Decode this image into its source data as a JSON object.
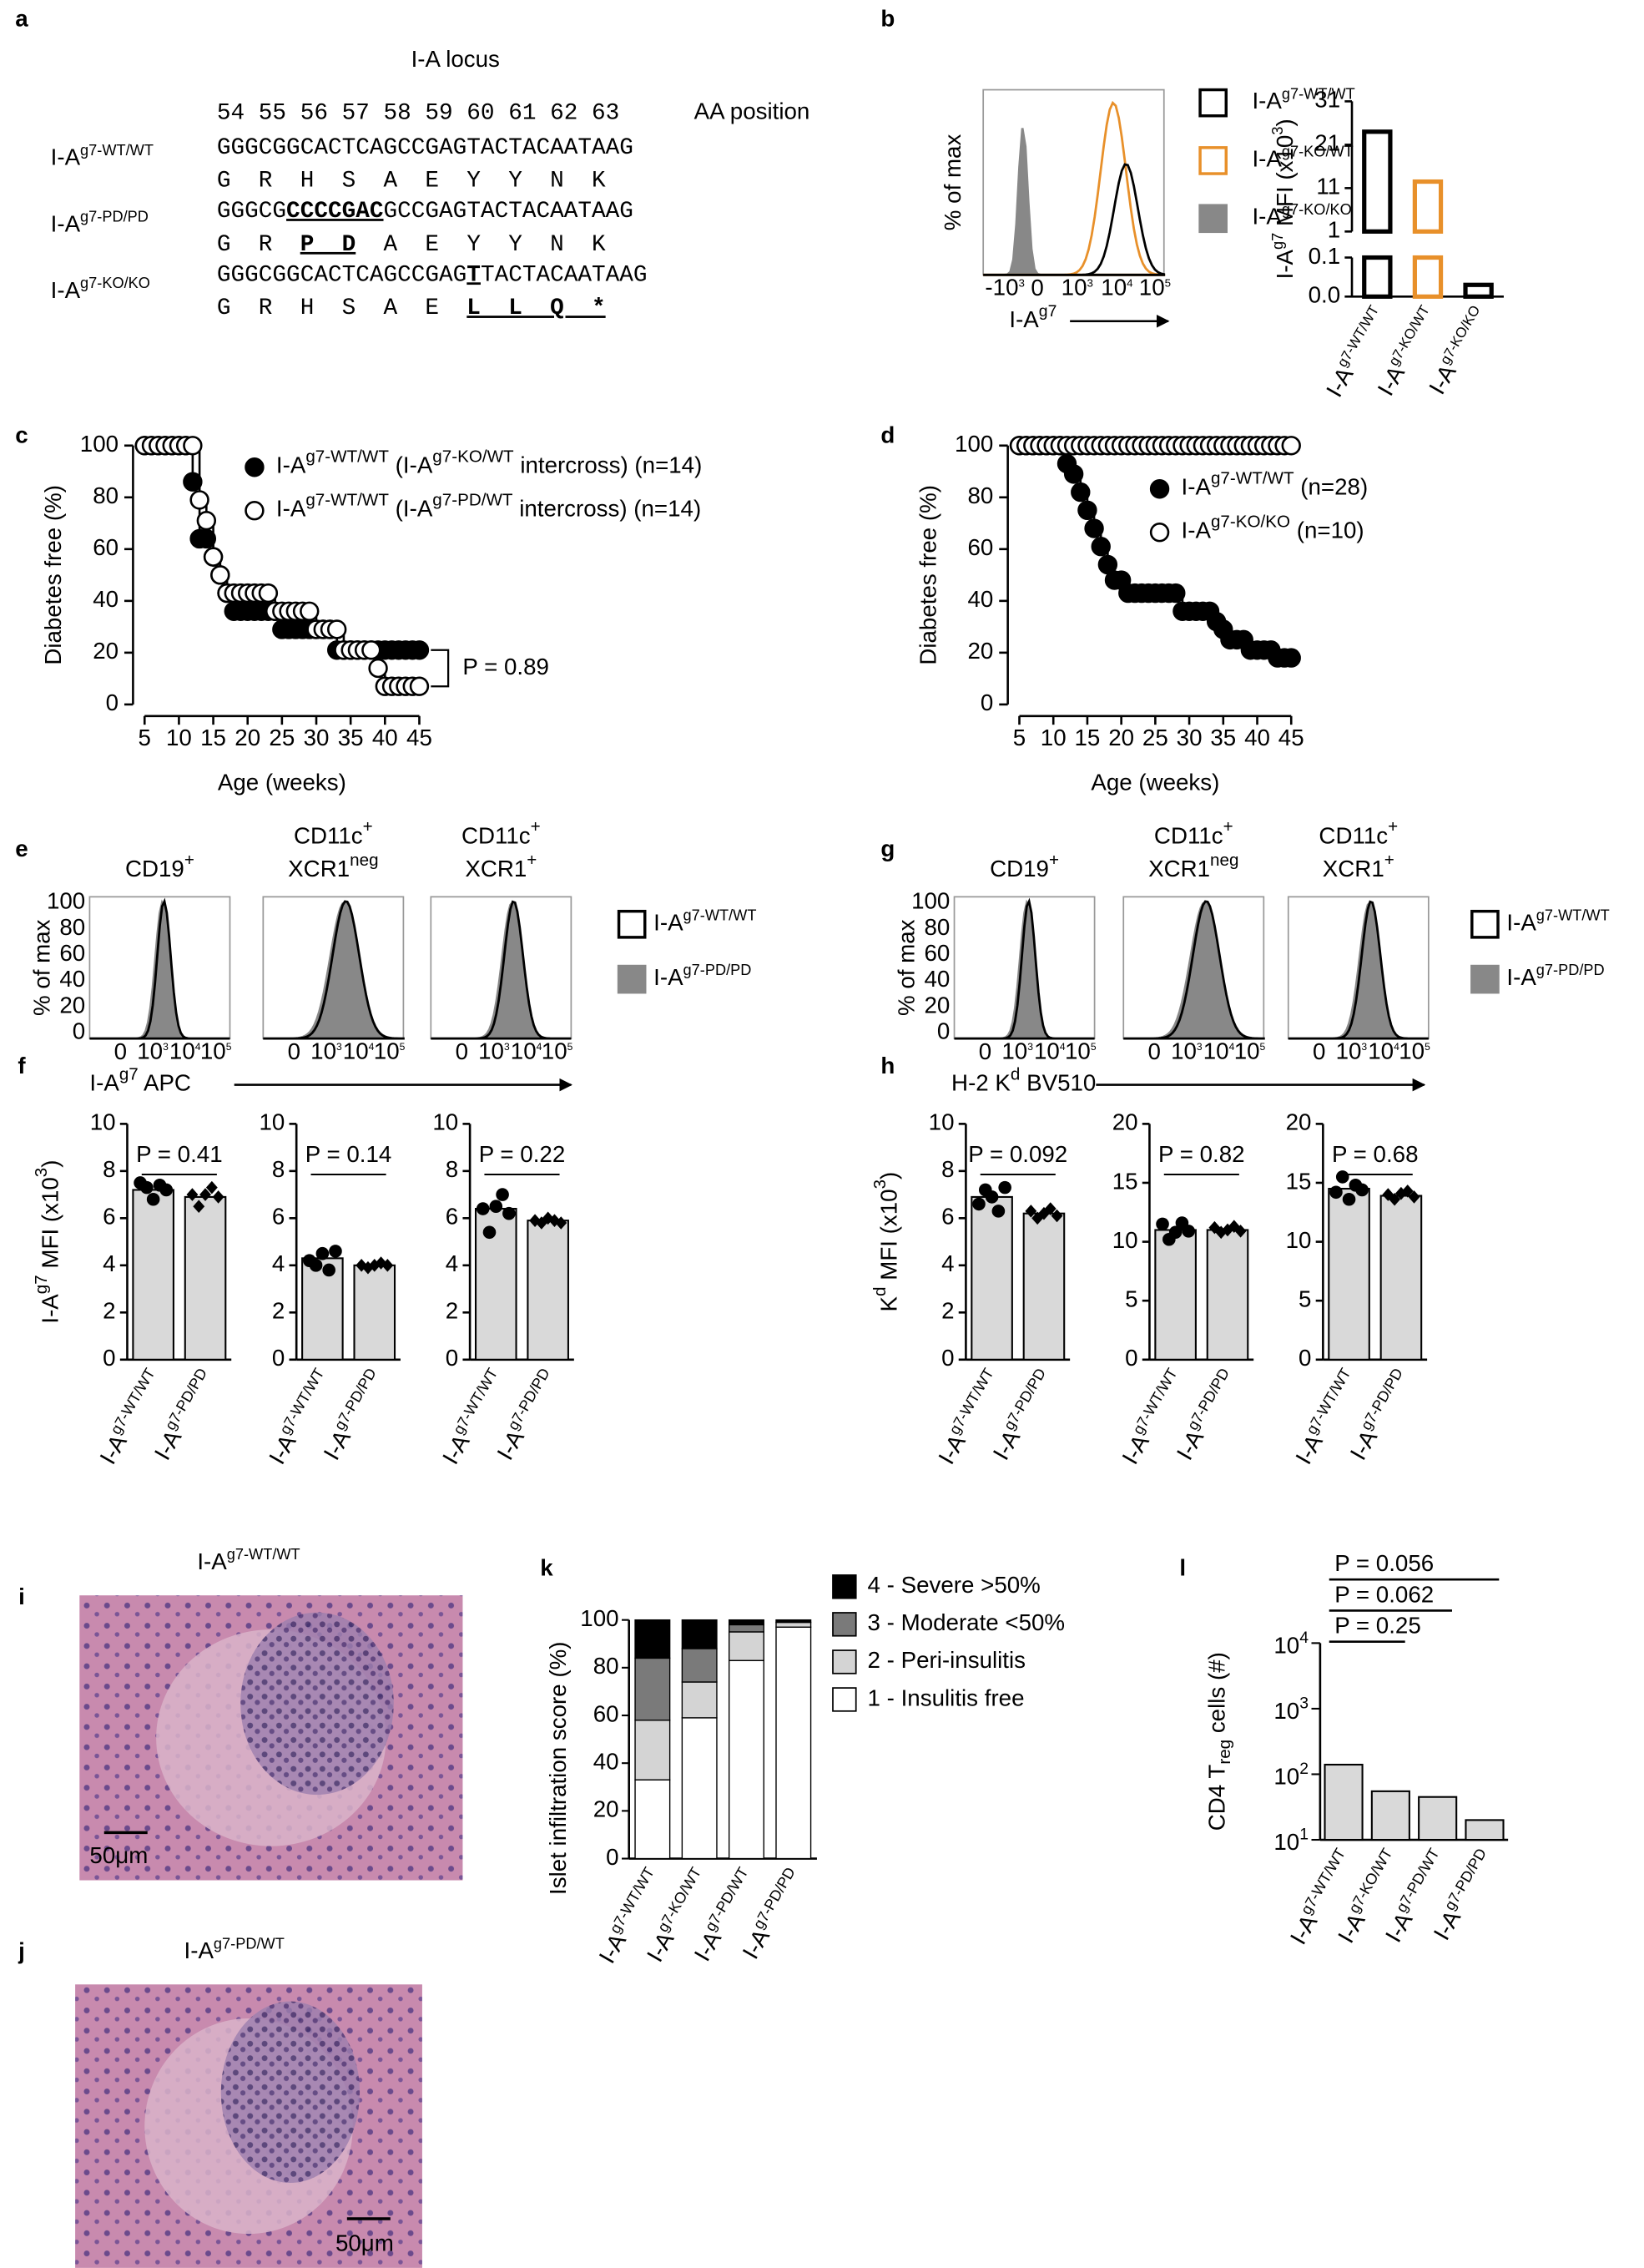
{
  "panel_labels": [
    "a",
    "b",
    "c",
    "d",
    "e",
    "f",
    "g",
    "h",
    "i",
    "j",
    "k",
    "l"
  ],
  "panel_a": {
    "title": "I-A locus",
    "positions": "54 55 56 57 58 59 60 61 62 63",
    "positions_label": "AA position",
    "rows": [
      {
        "name": [
          "I-A",
          {
            "sup": "g7-WT/WT"
          }
        ],
        "dna": [
          "GGGCGGCACTCAGCCGAGTACTACAATAAG"
        ],
        "protein": [
          "G  R  H  S  A  E  Y  Y  N  K"
        ]
      },
      {
        "name": [
          "I-A",
          {
            "sup": "g7-PD/PD"
          }
        ],
        "dna": [
          "GGGCG",
          {
            "bold": "CCCCGAC"
          },
          "GCCGAGTACTACAATAAG"
        ],
        "protein": [
          "G  R  ",
          {
            "bold": "P  D"
          },
          "  A  E  Y  Y  N  K"
        ]
      },
      {
        "name": [
          "I-A",
          {
            "sup": "g7-KO/KO"
          }
        ],
        "dna": [
          "GGGCGGCACTCAGCCGAG",
          {
            "bold": "T"
          },
          "TACTACAATAAG"
        ],
        "protein": [
          "G  R  H  S  A  E  ",
          {
            "bold": "L  L  Q  *"
          }
        ]
      }
    ]
  },
  "panel_b": {
    "flow": {
      "ylabel": "% of max",
      "xlabel": [
        "I-A",
        {
          "sup": "g7"
        }
      ],
      "xticks": [
        [
          "-10",
          {
            "sup": "3"
          }
        ],
        "0",
        [
          "10",
          {
            "sup": "3"
          }
        ],
        [
          "10",
          {
            "sup": "4"
          }
        ],
        [
          "10",
          {
            "sup": "5"
          }
        ]
      ]
    },
    "legend": [
      {
        "text": [
          "I-A",
          {
            "sup": "g7-WT/WT"
          }
        ],
        "fill": "#ffffff",
        "edge": "#000000"
      },
      {
        "text": [
          "I-A",
          {
            "sup": "g7-KO/WT"
          }
        ],
        "fill": "#ffffff",
        "edge": "#e8902a"
      },
      {
        "text": [
          "I-A",
          {
            "sup": "g7-KO/KO"
          }
        ],
        "fill": "#888888",
        "edge": "#888888"
      }
    ]
  },
  "panel_e": {
    "titles": [
      [
        [
          "CD19",
          {
            "sup": "+"
          }
        ]
      ],
      [
        [
          "CD11c",
          {
            "sup": "+"
          }
        ],
        [
          "XCR1",
          {
            "sup": "neg"
          }
        ]
      ],
      [
        [
          "CD11c",
          {
            "sup": "+"
          }
        ],
        [
          "XCR1",
          {
            "sup": "+"
          }
        ]
      ]
    ],
    "ylabel": "% of max",
    "yticks": [
      "100",
      "80",
      "60",
      "40",
      "20",
      "0"
    ],
    "xticks": [
      "0",
      [
        "10",
        {
          "sup": "3"
        }
      ],
      [
        "10",
        {
          "sup": "4"
        }
      ],
      [
        "10",
        {
          "sup": "5"
        }
      ]
    ],
    "xlabel": [
      "I-A",
      {
        "sup": "g7"
      },
      " APC"
    ],
    "legend": [
      {
        "text": [
          "I-A",
          {
            "sup": "g7-WT/WT"
          }
        ],
        "fill": "#ffffff"
      },
      {
        "text": [
          "I-A",
          {
            "sup": "g7-PD/PD"
          }
        ],
        "fill": "#888888"
      }
    ]
  },
  "panel_g": {
    "titles": [
      [
        [
          "CD19",
          {
            "sup": "+"
          }
        ]
      ],
      [
        [
          "CD11c",
          {
            "sup": "+"
          }
        ],
        [
          "XCR1",
          {
            "sup": "neg"
          }
        ]
      ],
      [
        [
          "CD11c",
          {
            "sup": "+"
          }
        ],
        [
          "XCR1",
          {
            "sup": "+"
          }
        ]
      ]
    ],
    "ylabel": "% of max",
    "yticks": [
      "100",
      "80",
      "60",
      "40",
      "20",
      "0"
    ],
    "xticks": [
      "0",
      [
        "10",
        {
          "sup": "3"
        }
      ],
      [
        "10",
        {
          "sup": "4"
        }
      ],
      [
        "10",
        {
          "sup": "5"
        }
      ]
    ],
    "xlabel": [
      "H-2 K",
      {
        "sup": "d"
      },
      " BV510"
    ],
    "legend": [
      {
        "text": [
          "I-A",
          {
            "sup": "g7-WT/WT"
          }
        ],
        "fill": "#ffffff"
      },
      {
        "text": [
          "I-A",
          {
            "sup": "g7-PD/PD"
          }
        ],
        "fill": "#888888"
      }
    ]
  },
  "panel_i": {
    "title": [
      "I-A",
      {
        "sup": "g7-WT/WT"
      }
    ],
    "scale": "50μm"
  },
  "panel_j": {
    "title": [
      "I-A",
      {
        "sup": "g7-PD/WT"
      }
    ],
    "scale": "50μm"
  },
  "chart_data": [
    {
      "type": "broken_bar",
      "ylabel": [
        "I-A",
        {
          "sup": "g7"
        },
        " MFI (x10",
        {
          "sup": "3"
        },
        ")"
      ],
      "categories": [
        [
          "I-A",
          {
            "sup": "g7-WT/WT"
          }
        ],
        [
          "I-A",
          {
            "sup": "g7-KO/WT"
          }
        ],
        [
          "I-A",
          {
            "sup": "g7-KO/KO"
          }
        ]
      ],
      "values": [
        24,
        12.5,
        0.03
      ],
      "colors": [
        "#000000",
        "#e8902a",
        "#000000"
      ],
      "ylim": [
        0,
        31
      ],
      "axis_break": [
        0.1,
        1
      ],
      "yticks": [
        31,
        21,
        11,
        1,
        0.1,
        {
          "value": 0,
          "label": "0.0"
        }
      ]
    },
    {
      "type": "survival",
      "xlabel": "Age (weeks)",
      "ylabel": "Diabetes free (%)",
      "x": [
        5,
        6,
        7,
        8,
        9,
        10,
        11,
        12,
        13,
        14,
        15,
        16,
        17,
        18,
        19,
        20,
        21,
        22,
        23,
        24,
        25,
        26,
        27,
        28,
        29,
        30,
        31,
        32,
        33,
        34,
        35,
        36,
        37,
        38,
        39,
        40,
        41,
        42,
        43,
        44,
        45
      ],
      "series": [
        {
          "name": [
            "I-A",
            {
              "sup": "g7-WT/WT"
            },
            " (I-A",
            {
              "sup": "g7-KO/WT"
            },
            " intercross) (n=14)"
          ],
          "color": "#000000",
          "fill": "#000000",
          "values": [
            100,
            100,
            100,
            100,
            100,
            100,
            100,
            86,
            64,
            64,
            57,
            50,
            43,
            36,
            36,
            36,
            36,
            36,
            36,
            36,
            29,
            29,
            29,
            29,
            29,
            29,
            29,
            29,
            21,
            21,
            21,
            21,
            21,
            21,
            21,
            21,
            21,
            21,
            21,
            21,
            21
          ]
        },
        {
          "name": [
            "I-A",
            {
              "sup": "g7-WT/WT"
            },
            " (I-A",
            {
              "sup": "g7-PD/WT"
            },
            " intercross) (n=14)"
          ],
          "color": "#000000",
          "fill": "#ffffff",
          "values": [
            100,
            100,
            100,
            100,
            100,
            100,
            100,
            100,
            79,
            71,
            57,
            50,
            43,
            43,
            43,
            43,
            43,
            43,
            43,
            36,
            36,
            36,
            36,
            36,
            36,
            29,
            29,
            29,
            29,
            21,
            21,
            21,
            21,
            21,
            14,
            7,
            7,
            7,
            7,
            7,
            7
          ]
        }
      ],
      "xlim": [
        5,
        45
      ],
      "xticks": [
        5,
        10,
        15,
        20,
        25,
        30,
        35,
        40,
        45
      ],
      "ylim": [
        0,
        100
      ],
      "yticks": [
        0,
        20,
        40,
        60,
        80,
        100
      ],
      "annotation": "P = 0.89"
    },
    {
      "type": "survival",
      "xlabel": "Age (weeks)",
      "ylabel": "Diabetes free (%)",
      "x": [
        5,
        6,
        7,
        8,
        9,
        10,
        11,
        12,
        13,
        14,
        15,
        16,
        17,
        18,
        19,
        20,
        21,
        22,
        23,
        24,
        25,
        26,
        27,
        28,
        29,
        30,
        31,
        32,
        33,
        34,
        35,
        36,
        37,
        38,
        39,
        40,
        41,
        42,
        43,
        44,
        45
      ],
      "series": [
        {
          "name": [
            "I-A",
            {
              "sup": "g7-WT/WT"
            },
            " (n=28)"
          ],
          "color": "#000000",
          "fill": "#000000",
          "values": [
            100,
            100,
            100,
            100,
            100,
            100,
            100,
            93,
            89,
            82,
            75,
            68,
            61,
            54,
            48,
            48,
            43,
            43,
            43,
            43,
            43,
            43,
            43,
            43,
            36,
            36,
            36,
            36,
            36,
            32,
            29,
            25,
            25,
            25,
            21,
            21,
            21,
            21,
            18,
            18,
            18
          ]
        },
        {
          "name": [
            "I-A",
            {
              "sup": "g7-KO/KO"
            },
            " (n=10)"
          ],
          "color": "#000000",
          "fill": "#ffffff",
          "values": [
            100,
            100,
            100,
            100,
            100,
            100,
            100,
            100,
            100,
            100,
            100,
            100,
            100,
            100,
            100,
            100,
            100,
            100,
            100,
            100,
            100,
            100,
            100,
            100,
            100,
            100,
            100,
            100,
            100,
            100,
            100,
            100,
            100,
            100,
            100,
            100,
            100,
            100,
            100,
            100,
            100
          ]
        }
      ],
      "xlim": [
        5,
        45
      ],
      "xticks": [
        5,
        10,
        15,
        20,
        25,
        30,
        35,
        40,
        45
      ],
      "ylim": [
        0,
        100
      ],
      "yticks": [
        0,
        20,
        40,
        60,
        80,
        100
      ]
    },
    {
      "type": "dot_bar",
      "ylabel": [
        "I-A",
        {
          "sup": "g7"
        },
        " MFI (x10",
        {
          "sup": "3"
        },
        ")"
      ],
      "annotation": "P = 0.41",
      "color": "#d9d9d9",
      "categories": [
        [
          "I-A",
          {
            "sup": "g7-WT/WT"
          }
        ],
        [
          "I-A",
          {
            "sup": "g7-PD/PD"
          }
        ]
      ],
      "values": [
        7.2,
        6.9
      ],
      "points": [
        [
          7.5,
          7.3,
          6.8,
          7.4,
          7.2
        ],
        [
          7.0,
          6.5,
          7.0,
          7.3,
          6.9
        ]
      ],
      "ylim": [
        0,
        10
      ],
      "yticks": [
        0,
        2,
        4,
        6,
        8,
        10
      ]
    },
    {
      "type": "dot_bar",
      "annotation": "P = 0.14",
      "color": "#d9d9d9",
      "categories": [
        [
          "I-A",
          {
            "sup": "g7-WT/WT"
          }
        ],
        [
          "I-A",
          {
            "sup": "g7-PD/PD"
          }
        ]
      ],
      "values": [
        4.3,
        4.0
      ],
      "points": [
        [
          4.2,
          4.0,
          4.5,
          3.8,
          4.6
        ],
        [
          4.0,
          3.9,
          4.0,
          4.1,
          4.0
        ]
      ],
      "ylim": [
        0,
        10
      ],
      "yticks": [
        0,
        2,
        4,
        6,
        8,
        10
      ]
    },
    {
      "type": "dot_bar",
      "annotation": "P = 0.22",
      "color": "#d9d9d9",
      "categories": [
        [
          "I-A",
          {
            "sup": "g7-WT/WT"
          }
        ],
        [
          "I-A",
          {
            "sup": "g7-PD/PD"
          }
        ]
      ],
      "values": [
        6.4,
        5.9
      ],
      "points": [
        [
          6.4,
          5.4,
          6.5,
          7.0,
          6.2
        ],
        [
          5.9,
          5.8,
          6.0,
          5.9,
          5.8
        ]
      ],
      "ylim": [
        0,
        10
      ],
      "yticks": [
        0,
        2,
        4,
        6,
        8,
        10
      ]
    },
    {
      "type": "dot_bar",
      "ylabel": [
        "K",
        {
          "sup": "d"
        },
        " MFI (x10",
        {
          "sup": "3"
        },
        ")"
      ],
      "annotation": "P = 0.092",
      "color": "#d9d9d9",
      "categories": [
        [
          "I-A",
          {
            "sup": "g7-WT/WT"
          }
        ],
        [
          "I-A",
          {
            "sup": "g7-PD/PD"
          }
        ]
      ],
      "values": [
        6.9,
        6.2
      ],
      "points": [
        [
          6.6,
          7.2,
          6.9,
          6.3,
          7.3
        ],
        [
          6.3,
          6.0,
          6.2,
          6.4,
          6.1
        ]
      ],
      "ylim": [
        0,
        10
      ],
      "yticks": [
        0,
        2,
        4,
        6,
        8,
        10
      ]
    },
    {
      "type": "dot_bar",
      "annotation": "P = 0.82",
      "color": "#d9d9d9",
      "categories": [
        [
          "I-A",
          {
            "sup": "g7-WT/WT"
          }
        ],
        [
          "I-A",
          {
            "sup": "g7-PD/PD"
          }
        ]
      ],
      "values": [
        11,
        11
      ],
      "points": [
        [
          11.5,
          10.2,
          10.8,
          11.6,
          10.9
        ],
        [
          11.2,
          10.8,
          11.0,
          11.3,
          10.9
        ]
      ],
      "ylim": [
        0,
        20
      ],
      "yticks": [
        0,
        5,
        10,
        15,
        20
      ]
    },
    {
      "type": "dot_bar",
      "annotation": "P = 0.68",
      "color": "#d9d9d9",
      "categories": [
        [
          "I-A",
          {
            "sup": "g7-WT/WT"
          }
        ],
        [
          "I-A",
          {
            "sup": "g7-PD/PD"
          }
        ]
      ],
      "values": [
        14.5,
        13.9
      ],
      "points": [
        [
          14.2,
          15.5,
          13.6,
          14.8,
          14.4
        ],
        [
          14.0,
          13.6,
          14.1,
          14.3,
          13.8
        ]
      ],
      "ylim": [
        0,
        20
      ],
      "yticks": [
        0,
        5,
        10,
        15,
        20
      ]
    },
    {
      "type": "stacked_bar",
      "ylabel": "Islet infiltration score (%)",
      "categories": [
        [
          "I-A",
          {
            "sup": "g7-WT/WT"
          }
        ],
        [
          "I-A",
          {
            "sup": "g7-KO/WT"
          }
        ],
        [
          "I-A",
          {
            "sup": "g7-PD/WT"
          }
        ],
        [
          "I-A",
          {
            "sup": "g7-PD/PD"
          }
        ]
      ],
      "series": [
        {
          "name": "1 - Insulitis free",
          "color": "#ffffff",
          "values": [
            33,
            59,
            83,
            97
          ]
        },
        {
          "name": "2 - Peri-insulitis",
          "color": "#d4d4d4",
          "values": [
            25,
            15,
            12,
            2
          ]
        },
        {
          "name": "3 - Moderate <50%",
          "color": "#7a7a7a",
          "values": [
            26,
            14,
            3,
            0
          ]
        },
        {
          "name": "4 - Severe >50%",
          "color": "#000000",
          "values": [
            16,
            12,
            2,
            1
          ]
        }
      ],
      "ylim": [
        0,
        100
      ],
      "yticks": [
        0,
        20,
        40,
        60,
        80,
        100
      ]
    },
    {
      "type": "bar",
      "log": true,
      "ylabel": [
        "CD4 T",
        {
          "sub": "reg"
        },
        " cells (#)"
      ],
      "color": "#d9d9d9",
      "categories": [
        [
          "I-A",
          {
            "sup": "g7-WT/WT"
          }
        ],
        [
          "I-A",
          {
            "sup": "g7-KO/WT"
          }
        ],
        [
          "I-A",
          {
            "sup": "g7-PD/WT"
          }
        ],
        [
          "I-A",
          {
            "sup": "g7-PD/PD"
          }
        ]
      ],
      "values": [
        140,
        55,
        45,
        20
      ],
      "ylim": [
        10,
        10000
      ],
      "yticks": [
        {
          "value": 10,
          "label": [
            "10",
            {
              "sup": "1"
            }
          ]
        },
        {
          "value": 100,
          "label": [
            "10",
            {
              "sup": "2"
            }
          ]
        },
        {
          "value": 1000,
          "label": [
            "10",
            {
              "sup": "3"
            }
          ]
        },
        {
          "value": 10000,
          "label": [
            "10",
            {
              "sup": "4"
            }
          ]
        }
      ],
      "annotations": [
        "P = 0.056",
        "P = 0.062",
        "P = 0.25"
      ]
    }
  ]
}
